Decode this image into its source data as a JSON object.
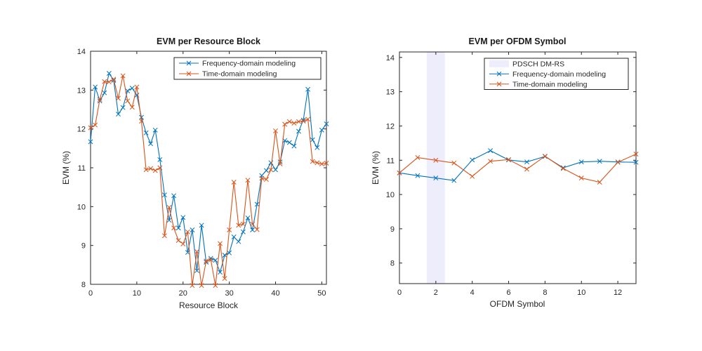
{
  "figure": {
    "background": "#ffffff",
    "description": "MATLAB figure with two EVM line plots"
  },
  "colors": {
    "blue": "#0072BD",
    "orange": "#D95319",
    "axis": "#262626",
    "dmrs_band": "#EEEDFB",
    "legend_border": "#262626"
  },
  "chart_data": [
    {
      "type": "line",
      "title": "EVM per Resource Block",
      "xlabel": "Resource Block",
      "ylabel": "EVM (%)",
      "xlim": [
        0,
        51
      ],
      "ylim": [
        8,
        14
      ],
      "x_ticks": [
        0,
        10,
        20,
        30,
        40,
        50
      ],
      "y_ticks": [
        8,
        9,
        10,
        11,
        12,
        13,
        14
      ],
      "grid": false,
      "legend_position": "top-right-inside",
      "x": [
        0,
        1,
        2,
        3,
        4,
        5,
        6,
        7,
        8,
        9,
        10,
        11,
        12,
        13,
        14,
        15,
        16,
        17,
        18,
        19,
        20,
        21,
        22,
        23,
        24,
        25,
        26,
        27,
        28,
        29,
        30,
        31,
        32,
        33,
        34,
        35,
        36,
        37,
        38,
        39,
        40,
        41,
        42,
        43,
        44,
        45,
        46,
        47,
        48,
        49,
        50,
        51
      ],
      "series": [
        {
          "name": "Frequency-domain modeling",
          "color": "#0072BD",
          "marker": "x",
          "values": [
            11.67,
            13.08,
            12.72,
            12.93,
            13.43,
            13.25,
            12.38,
            12.55,
            12.98,
            13.05,
            12.87,
            12.3,
            11.9,
            11.62,
            11.97,
            11.21,
            10.3,
            9.65,
            10.28,
            9.45,
            9.72,
            8.82,
            9.4,
            8.35,
            9.52,
            8.57,
            8.67,
            8.62,
            8.31,
            8.75,
            8.81,
            9.22,
            9.1,
            9.35,
            9.71,
            9.4,
            10.06,
            10.8,
            10.93,
            11.13,
            10.95,
            11.15,
            11.7,
            11.65,
            11.56,
            11.94,
            12.23,
            13.02,
            11.72,
            11.52,
            11.97,
            12.13
          ]
        },
        {
          "name": "Time-domain modeling",
          "color": "#D95319",
          "marker": "x",
          "values": [
            12.03,
            12.1,
            12.76,
            13.22,
            13.21,
            13.28,
            12.79,
            13.37,
            12.72,
            12.56,
            13.08,
            12.2,
            10.95,
            10.98,
            10.93,
            11.0,
            9.25,
            9.98,
            9.45,
            9.13,
            9.04,
            9.35,
            7.97,
            8.84,
            7.97,
            8.6,
            8.63,
            7.97,
            9.05,
            8.15,
            9.4,
            10.63,
            9.52,
            9.55,
            10.68,
            9.55,
            9.41,
            10.73,
            10.7,
            10.95,
            11.95,
            11.1,
            12.12,
            12.19,
            12.15,
            12.19,
            12.2,
            12.25,
            11.16,
            11.13,
            11.1,
            11.12
          ]
        }
      ]
    },
    {
      "type": "line",
      "title": "EVM per OFDM Symbol",
      "xlabel": "OFDM Symbol",
      "ylabel": "EVM (%)",
      "xlim": [
        0,
        13
      ],
      "ylim": [
        7.4,
        14.16
      ],
      "x_ticks": [
        0,
        2,
        4,
        6,
        8,
        10,
        12
      ],
      "y_ticks": [
        8,
        9,
        10,
        11,
        12,
        13,
        14
      ],
      "grid": false,
      "legend_position": "top-right-inside",
      "band": {
        "label": "PDSCH DM-RS",
        "x_start": 1.5,
        "x_end": 2.5,
        "color": "#EEEDFB"
      },
      "x": [
        0,
        1,
        2,
        3,
        4,
        5,
        6,
        7,
        8,
        9,
        10,
        11,
        12,
        13
      ],
      "series": [
        {
          "name": "Frequency-domain modeling",
          "color": "#0072BD",
          "marker": "x",
          "values": [
            10.63,
            10.55,
            10.48,
            10.41,
            11.01,
            11.28,
            11.01,
            10.95,
            11.11,
            10.78,
            10.95,
            10.97,
            10.95,
            10.94
          ]
        },
        {
          "name": "Time-domain modeling",
          "color": "#D95319",
          "marker": "x",
          "values": [
            10.63,
            11.08,
            11.0,
            10.92,
            10.53,
            10.97,
            11.02,
            10.74,
            11.12,
            10.76,
            10.48,
            10.36,
            10.94,
            11.18
          ]
        }
      ]
    }
  ]
}
